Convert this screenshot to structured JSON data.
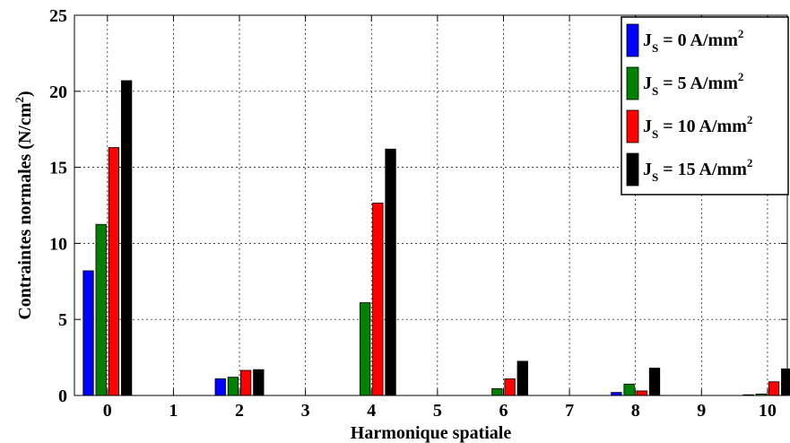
{
  "chart_data": {
    "type": "bar",
    "title": "",
    "xlabel": "Harmonique spatiale",
    "ylabel": {
      "main": "Contraintes normales (N/cm",
      "sup": "2",
      "tail": ")"
    },
    "categories": [
      "0",
      "1",
      "2",
      "3",
      "4",
      "5",
      "6",
      "7",
      "8",
      "9",
      "10"
    ],
    "ylim": [
      0,
      25
    ],
    "yticks": [
      "0",
      "5",
      "10",
      "15",
      "20",
      "25"
    ],
    "grid": "dashed",
    "legend_position": "top-right",
    "series": [
      {
        "name": {
          "j": "J",
          "sub": "S",
          "rest": " = 0 A/mm",
          "sup": "2"
        },
        "color": "#0000ff",
        "values": [
          8.2,
          0,
          1.1,
          0,
          0,
          0,
          0,
          0,
          0.2,
          0,
          0.05
        ]
      },
      {
        "name": {
          "j": "J",
          "sub": "S",
          "rest": " = 5 A/mm",
          "sup": "2"
        },
        "color": "#008000",
        "values": [
          11.25,
          0,
          1.2,
          0,
          6.1,
          0,
          0.45,
          0,
          0.75,
          0,
          0.1
        ]
      },
      {
        "name": {
          "j": "J",
          "sub": "S",
          "rest": " = 10 A/mm",
          "sup": "2"
        },
        "color": "#ff0000",
        "values": [
          16.3,
          0,
          1.65,
          0,
          12.65,
          0,
          1.1,
          0,
          0.3,
          0,
          0.9
        ]
      },
      {
        "name": {
          "j": "J",
          "sub": "S",
          "rest": " = 15 A/mm",
          "sup": "2"
        },
        "color": "#000000",
        "values": [
          20.7,
          0,
          1.7,
          0,
          16.2,
          0,
          2.25,
          0,
          1.8,
          0,
          1.75
        ]
      }
    ]
  }
}
